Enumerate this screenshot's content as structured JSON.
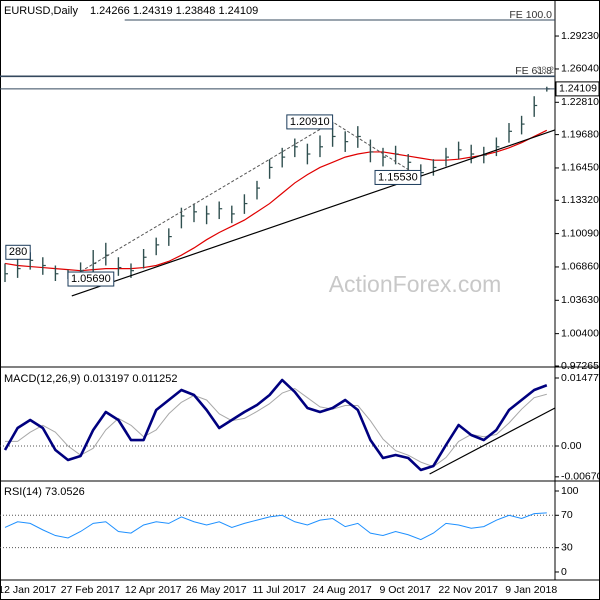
{
  "chart_data": [
    {
      "type": "ohlc",
      "title": "EURUSD,Daily",
      "subtitle": "1.24266 1.24319 1.23848 1.24109",
      "color": "#2f4f4f",
      "high": [
        1.072,
        1.076,
        1.0828,
        1.078,
        1.07,
        1.066,
        1.073,
        1.085,
        1.092,
        1.078,
        1.072,
        1.086,
        1.097,
        1.106,
        1.126,
        1.13,
        1.128,
        1.132,
        1.128,
        1.139,
        1.152,
        1.173,
        1.184,
        1.193,
        1.188,
        1.196,
        1.2091,
        1.2,
        1.205,
        1.192,
        1.184,
        1.186,
        1.178,
        1.168,
        1.173,
        1.184,
        1.19,
        1.187,
        1.185,
        1.194,
        1.208,
        1.215,
        1.234,
        1.24319
      ],
      "low": [
        1.054,
        1.058,
        1.066,
        1.061,
        1.055,
        1.0569,
        1.058,
        1.064,
        1.07,
        1.06,
        1.058,
        1.067,
        1.08,
        1.089,
        1.106,
        1.112,
        1.11,
        1.115,
        1.111,
        1.12,
        1.134,
        1.154,
        1.165,
        1.175,
        1.168,
        1.175,
        1.185,
        1.18,
        1.184,
        1.17,
        1.166,
        1.168,
        1.161,
        1.1553,
        1.157,
        1.166,
        1.173,
        1.169,
        1.169,
        1.176,
        1.189,
        1.197,
        1.214,
        1.23848
      ],
      "close": [
        1.062,
        1.067,
        1.075,
        1.07,
        1.062,
        1.06,
        1.065,
        1.072,
        1.08,
        1.068,
        1.065,
        1.078,
        1.09,
        1.098,
        1.118,
        1.122,
        1.12,
        1.125,
        1.12,
        1.13,
        1.145,
        1.165,
        1.175,
        1.185,
        1.178,
        1.185,
        1.195,
        1.19,
        1.195,
        1.18,
        1.175,
        1.178,
        1.17,
        1.16,
        1.165,
        1.175,
        1.182,
        1.178,
        1.177,
        1.185,
        1.2,
        1.207,
        1.225,
        1.24109
      ],
      "overlay": {
        "color": "#e00000",
        "values": [
          1.072,
          1.07,
          1.069,
          1.068,
          1.067,
          1.066,
          1.065,
          1.066,
          1.067,
          1.067,
          1.067,
          1.068,
          1.07,
          1.074,
          1.08,
          1.087,
          1.095,
          1.102,
          1.108,
          1.114,
          1.122,
          1.13,
          1.14,
          1.15,
          1.158,
          1.165,
          1.17,
          1.175,
          1.178,
          1.18,
          1.18,
          1.178,
          1.176,
          1.174,
          1.172,
          1.172,
          1.173,
          1.175,
          1.177,
          1.18,
          1.184,
          1.189,
          1.195,
          1.201
        ]
      },
      "trendline": {
        "x": [
          5.3,
          43.65
        ],
        "y": [
          1.0405,
          1.2013
        ]
      },
      "annotations": [
        {
          "label": "280",
          "value": 1.0828,
          "index": 2,
          "side": "left"
        },
        {
          "label": "1.05690",
          "value": 1.0569,
          "index": 5,
          "side": "right"
        },
        {
          "label": "1.20910",
          "value": 1.2091,
          "index": 26,
          "side": "left"
        },
        {
          "label": "1.15530",
          "value": 1.1553,
          "index": 33,
          "side": "left"
        }
      ],
      "levels": [
        {
          "label": "FE 100.0",
          "value": 1.3078,
          "start": 9.5
        },
        {
          "label": "FE 61.8",
          "value": 1.2536
        },
        {
          "label": "38.2",
          "value": 1.253
        }
      ],
      "watermark": "ActionForex.com",
      "ylim": [
        0.97265,
        1.3272
      ],
      "yticks": [
        0.97265,
        {
          "value": 1.004,
          "label": "1.00400"
        },
        {
          "value": 1.0363,
          "label": "1.03630"
        },
        {
          "value": 1.0686,
          "label": "1.06860"
        },
        {
          "value": 1.1009,
          "label": "1.10090"
        },
        {
          "value": 1.1332,
          "label": "1.13320"
        },
        {
          "value": 1.1645,
          "label": "1.16450"
        },
        {
          "value": 1.1968,
          "label": "1.19680"
        },
        {
          "value": 1.2281,
          "label": "1.22810"
        },
        {
          "value": 1.2604,
          "label": "1.26040"
        },
        {
          "value": 1.2923,
          "label": "1.29230"
        }
      ]
    },
    {
      "type": "macd",
      "title": "MACD(12,26,9) 0.013197 0.011252",
      "series": [
        {
          "color": "#00007f",
          "values": [
            -0.00087,
            0.00391,
            0.00565,
            0.00391,
            -0.00087,
            -0.00304,
            -0.00217,
            0.00348,
            0.00739,
            0.00565,
            0.0013,
            0.0013,
            0.00782,
            0.01,
            0.01217,
            0.01108,
            0.00782,
            0.00391,
            0.00565,
            0.00739,
            0.00891,
            0.01108,
            0.01434,
            0.01174,
            0.00826,
            0.00739,
            0.00826,
            0.01,
            0.00782,
            0.0013,
            -0.00261,
            -0.00196,
            -0.00261,
            -0.00521,
            -0.00434,
            0.00022,
            0.00456,
            0.00239,
            0.0013,
            0.00348,
            0.00782,
            0.01,
            0.01217,
            0.013197
          ]
        },
        {
          "color": "#a8a8a8",
          "values": [
            0.001,
            0.001,
            0.003,
            0.0045,
            0.003,
            0,
            -0.002,
            -0.0005,
            0.0035,
            0.006,
            0.0045,
            0.002,
            0.0035,
            0.007,
            0.0095,
            0.011,
            0.01,
            0.007,
            0.0055,
            0.006,
            0.0075,
            0.0092,
            0.0115,
            0.0125,
            0.0105,
            0.0085,
            0.008,
            0.0088,
            0.0088,
            0.0055,
            0.0015,
            -0.001,
            -0.002,
            -0.0035,
            -0.0045,
            -0.0025,
            0.001,
            0.0025,
            0.002,
            0.0025,
            0.005,
            0.008,
            0.0105,
            0.011252
          ]
        }
      ],
      "trendline": {
        "x": [
          33.7,
          43.65
        ],
        "y": [
          -0.00608,
          0.00826
        ]
      },
      "ylim": [
        -0.00739,
        0.01695
      ],
      "yticks": [
        -0.006705,
        {
          "value": 0,
          "label": "0.00"
        },
        0.014776
      ]
    },
    {
      "type": "rsi",
      "title": "RSI(14) 73.0526",
      "color": "#1e90ff",
      "values": [
        55,
        62,
        60,
        52,
        45,
        42,
        50,
        60,
        62,
        50,
        48,
        58,
        62,
        60,
        68,
        62,
        58,
        62,
        55,
        60,
        64,
        68,
        70,
        62,
        58,
        64,
        66,
        56,
        60,
        48,
        45,
        50,
        46,
        40,
        48,
        60,
        58,
        54,
        56,
        64,
        70,
        66,
        72,
        73.0526
      ],
      "categories": [
        null,
        null,
        "12 Jan 2017",
        null,
        null,
        null,
        null,
        "27 Feb 2017",
        null,
        null,
        null,
        null,
        "12 Apr 2017",
        null,
        null,
        null,
        null,
        "26 May 2017",
        null,
        null,
        null,
        null,
        "11 Jul 2017",
        null,
        null,
        null,
        null,
        "24 Aug 2017",
        null,
        null,
        null,
        null,
        "9 Oct 2017",
        null,
        null,
        null,
        null,
        "22 Nov 2017",
        null,
        null,
        null,
        null,
        "9 Jan 2018",
        null
      ],
      "grid": [
        30,
        70
      ],
      "ylim": [
        -9.9,
        111.1
      ],
      "yticks": [
        0,
        30,
        70,
        100
      ]
    }
  ]
}
